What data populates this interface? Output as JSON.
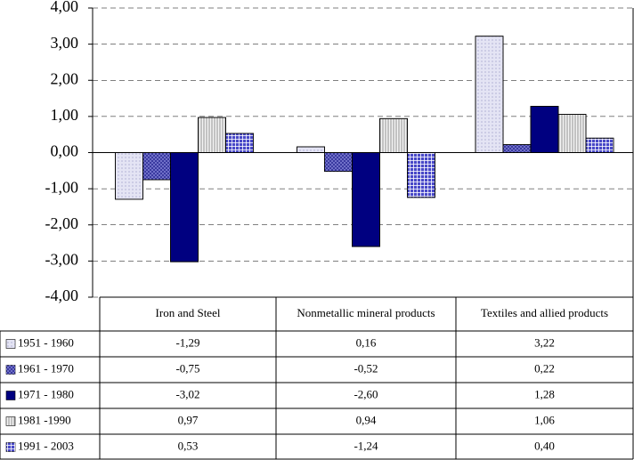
{
  "chart_data": {
    "type": "bar",
    "categories": [
      "Iron and Steel",
      "Nonmetallic mineral products",
      "Textiles and allied products"
    ],
    "series": [
      {
        "name": "1951 - 1960",
        "color": "#e4e4f4",
        "values": [
          -1.29,
          0.16,
          3.22
        ],
        "value_labels": [
          "-1,29",
          "0,16",
          "3,22"
        ]
      },
      {
        "name": "1961 - 1970",
        "color": "#3a3aa0",
        "values": [
          -0.75,
          -0.52,
          0.22
        ],
        "value_labels": [
          "-0,75",
          "-0,52",
          "0,22"
        ]
      },
      {
        "name": "1971 - 1980",
        "color": "#000080",
        "values": [
          -3.02,
          -2.6,
          1.28
        ],
        "value_labels": [
          "-3,02",
          "-2,60",
          "1,28"
        ]
      },
      {
        "name": "1981 -1990",
        "color": "#f4f4f4",
        "values": [
          0.97,
          0.94,
          1.06
        ],
        "value_labels": [
          "0,97",
          "0,94",
          "1,06"
        ]
      },
      {
        "name": "1991 - 2003",
        "color": "#4848c8",
        "values": [
          0.53,
          -1.24,
          0.4
        ],
        "value_labels": [
          "0,53",
          "-1,24",
          "0,40"
        ]
      }
    ],
    "ylim": [
      -4,
      4
    ],
    "yticks": [
      {
        "value": -4,
        "label": "-4,00"
      },
      {
        "value": -3,
        "label": "-3,00"
      },
      {
        "value": -2,
        "label": "-2,00"
      },
      {
        "value": -1,
        "label": "-1,00"
      },
      {
        "value": 0,
        "label": "0,00"
      },
      {
        "value": 1,
        "label": "1,00"
      },
      {
        "value": 2,
        "label": "2,00"
      },
      {
        "value": 3,
        "label": "3,00"
      },
      {
        "value": 4,
        "label": "4,00"
      }
    ],
    "grid": true
  }
}
